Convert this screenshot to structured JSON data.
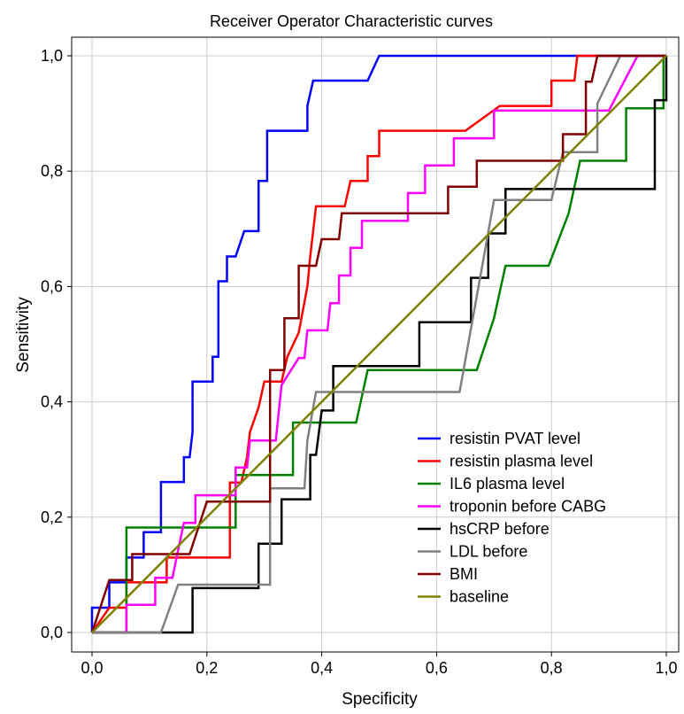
{
  "chart_data": {
    "type": "line",
    "title": "Receiver Operator Characteristic curves",
    "xlabel": "Specificity",
    "ylabel": "Sensitivity",
    "xlim": [
      0,
      1
    ],
    "ylim": [
      0,
      1
    ],
    "xticks": [
      "0,0",
      "0,2",
      "0,4",
      "0,6",
      "0,8",
      "1,0"
    ],
    "yticks": [
      "0,0",
      "0,2",
      "0,4",
      "0,6",
      "0,8",
      "1,0"
    ],
    "grid": true,
    "legend_position": "bottom-right",
    "series": [
      {
        "name": "resistin PVAT level",
        "color": "#0000ff",
        "points": [
          [
            0,
            0
          ],
          [
            0,
            0.043
          ],
          [
            0.03,
            0.043
          ],
          [
            0.03,
            0.087
          ],
          [
            0.06,
            0.087
          ],
          [
            0.06,
            0.13
          ],
          [
            0.09,
            0.13
          ],
          [
            0.09,
            0.174
          ],
          [
            0.11,
            0.174
          ],
          [
            0.12,
            0.174
          ],
          [
            0.12,
            0.261
          ],
          [
            0.16,
            0.261
          ],
          [
            0.16,
            0.304
          ],
          [
            0.17,
            0.304
          ],
          [
            0.175,
            0.348
          ],
          [
            0.175,
            0.435
          ],
          [
            0.21,
            0.435
          ],
          [
            0.21,
            0.478
          ],
          [
            0.22,
            0.478
          ],
          [
            0.22,
            0.609
          ],
          [
            0.235,
            0.609
          ],
          [
            0.235,
            0.652
          ],
          [
            0.25,
            0.652
          ],
          [
            0.265,
            0.696
          ],
          [
            0.29,
            0.696
          ],
          [
            0.29,
            0.783
          ],
          [
            0.305,
            0.783
          ],
          [
            0.305,
            0.87
          ],
          [
            0.375,
            0.87
          ],
          [
            0.375,
            0.913
          ],
          [
            0.385,
            0.957
          ],
          [
            0.48,
            0.957
          ],
          [
            0.5,
            1.0
          ],
          [
            1.0,
            1.0
          ]
        ]
      },
      {
        "name": "resistin plasma level",
        "color": "#ff0000",
        "points": [
          [
            0,
            0
          ],
          [
            0.03,
            0.043
          ],
          [
            0.06,
            0.043
          ],
          [
            0.06,
            0.087
          ],
          [
            0.13,
            0.087
          ],
          [
            0.13,
            0.13
          ],
          [
            0.24,
            0.13
          ],
          [
            0.24,
            0.26
          ],
          [
            0.26,
            0.26
          ],
          [
            0.27,
            0.304
          ],
          [
            0.275,
            0.348
          ],
          [
            0.29,
            0.39
          ],
          [
            0.3,
            0.435
          ],
          [
            0.33,
            0.435
          ],
          [
            0.34,
            0.478
          ],
          [
            0.36,
            0.52
          ],
          [
            0.375,
            0.6
          ],
          [
            0.38,
            0.652
          ],
          [
            0.385,
            0.696
          ],
          [
            0.39,
            0.739
          ],
          [
            0.44,
            0.739
          ],
          [
            0.45,
            0.783
          ],
          [
            0.48,
            0.783
          ],
          [
            0.48,
            0.826
          ],
          [
            0.5,
            0.826
          ],
          [
            0.5,
            0.87
          ],
          [
            0.65,
            0.87
          ],
          [
            0.71,
            0.913
          ],
          [
            0.8,
            0.913
          ],
          [
            0.8,
            0.957
          ],
          [
            0.84,
            0.957
          ],
          [
            0.845,
            1.0
          ],
          [
            1.0,
            1.0
          ]
        ]
      },
      {
        "name": "IL6 plasma level",
        "color": "#008000",
        "points": [
          [
            0,
            0
          ],
          [
            0.06,
            0
          ],
          [
            0.06,
            0.182
          ],
          [
            0.25,
            0.182
          ],
          [
            0.25,
            0.273
          ],
          [
            0.35,
            0.273
          ],
          [
            0.35,
            0.364
          ],
          [
            0.46,
            0.364
          ],
          [
            0.48,
            0.455
          ],
          [
            0.67,
            0.455
          ],
          [
            0.7,
            0.545
          ],
          [
            0.72,
            0.636
          ],
          [
            0.795,
            0.636
          ],
          [
            0.83,
            0.727
          ],
          [
            0.85,
            0.818
          ],
          [
            0.93,
            0.818
          ],
          [
            0.93,
            0.909
          ],
          [
            0.995,
            0.909
          ],
          [
            0.995,
            1.0
          ],
          [
            1.0,
            1.0
          ]
        ]
      },
      {
        "name": "troponin before CABG",
        "color": "#ff00ff",
        "points": [
          [
            0,
            0
          ],
          [
            0.06,
            0
          ],
          [
            0.06,
            0.048
          ],
          [
            0.11,
            0.048
          ],
          [
            0.11,
            0.095
          ],
          [
            0.14,
            0.095
          ],
          [
            0.15,
            0.143
          ],
          [
            0.16,
            0.19
          ],
          [
            0.18,
            0.19
          ],
          [
            0.18,
            0.238
          ],
          [
            0.25,
            0.238
          ],
          [
            0.25,
            0.286
          ],
          [
            0.27,
            0.286
          ],
          [
            0.275,
            0.333
          ],
          [
            0.32,
            0.333
          ],
          [
            0.325,
            0.381
          ],
          [
            0.33,
            0.429
          ],
          [
            0.36,
            0.476
          ],
          [
            0.37,
            0.476
          ],
          [
            0.375,
            0.524
          ],
          [
            0.41,
            0.524
          ],
          [
            0.415,
            0.571
          ],
          [
            0.43,
            0.571
          ],
          [
            0.43,
            0.619
          ],
          [
            0.45,
            0.619
          ],
          [
            0.45,
            0.667
          ],
          [
            0.47,
            0.667
          ],
          [
            0.47,
            0.714
          ],
          [
            0.55,
            0.714
          ],
          [
            0.55,
            0.762
          ],
          [
            0.58,
            0.762
          ],
          [
            0.58,
            0.81
          ],
          [
            0.63,
            0.81
          ],
          [
            0.63,
            0.857
          ],
          [
            0.68,
            0.857
          ],
          [
            0.7,
            0.857
          ],
          [
            0.7,
            0.905
          ],
          [
            0.9,
            0.905
          ],
          [
            0.95,
            1.0
          ],
          [
            1.0,
            1.0
          ]
        ]
      },
      {
        "name": "hsCRP before",
        "color": "#000000",
        "points": [
          [
            0,
            0
          ],
          [
            0.175,
            0
          ],
          [
            0.175,
            0.077
          ],
          [
            0.29,
            0.077
          ],
          [
            0.29,
            0.154
          ],
          [
            0.33,
            0.154
          ],
          [
            0.33,
            0.231
          ],
          [
            0.38,
            0.231
          ],
          [
            0.38,
            0.308
          ],
          [
            0.39,
            0.308
          ],
          [
            0.4,
            0.385
          ],
          [
            0.42,
            0.385
          ],
          [
            0.42,
            0.462
          ],
          [
            0.57,
            0.462
          ],
          [
            0.57,
            0.538
          ],
          [
            0.66,
            0.538
          ],
          [
            0.66,
            0.615
          ],
          [
            0.69,
            0.615
          ],
          [
            0.69,
            0.692
          ],
          [
            0.72,
            0.692
          ],
          [
            0.72,
            0.769
          ],
          [
            0.98,
            0.769
          ],
          [
            0.98,
            0.923
          ],
          [
            1.0,
            0.923
          ],
          [
            1.0,
            1.0
          ]
        ]
      },
      {
        "name": "LDL before",
        "color": "#808080",
        "points": [
          [
            0,
            0
          ],
          [
            0.12,
            0
          ],
          [
            0.15,
            0.083
          ],
          [
            0.25,
            0.083
          ],
          [
            0.29,
            0.083
          ],
          [
            0.31,
            0.083
          ],
          [
            0.31,
            0.25
          ],
          [
            0.37,
            0.25
          ],
          [
            0.375,
            0.333
          ],
          [
            0.39,
            0.417
          ],
          [
            0.64,
            0.417
          ],
          [
            0.67,
            0.583
          ],
          [
            0.7,
            0.75
          ],
          [
            0.8,
            0.75
          ],
          [
            0.82,
            0.833
          ],
          [
            0.88,
            0.833
          ],
          [
            0.88,
            0.917
          ],
          [
            0.92,
            1.0
          ],
          [
            1.0,
            1.0
          ]
        ]
      },
      {
        "name": "BMI",
        "color": "#800000",
        "points": [
          [
            0,
            0
          ],
          [
            0.015,
            0.045
          ],
          [
            0.03,
            0.091
          ],
          [
            0.07,
            0.091
          ],
          [
            0.07,
            0.136
          ],
          [
            0.11,
            0.136
          ],
          [
            0.17,
            0.136
          ],
          [
            0.2,
            0.227
          ],
          [
            0.31,
            0.227
          ],
          [
            0.31,
            0.455
          ],
          [
            0.335,
            0.455
          ],
          [
            0.335,
            0.545
          ],
          [
            0.36,
            0.545
          ],
          [
            0.36,
            0.636
          ],
          [
            0.39,
            0.636
          ],
          [
            0.4,
            0.682
          ],
          [
            0.43,
            0.682
          ],
          [
            0.435,
            0.727
          ],
          [
            0.62,
            0.727
          ],
          [
            0.62,
            0.773
          ],
          [
            0.67,
            0.773
          ],
          [
            0.67,
            0.818
          ],
          [
            0.82,
            0.818
          ],
          [
            0.82,
            0.864
          ],
          [
            0.86,
            0.864
          ],
          [
            0.86,
            0.955
          ],
          [
            0.87,
            0.955
          ],
          [
            0.88,
            1.0
          ],
          [
            1.0,
            1.0
          ]
        ]
      },
      {
        "name": "baseline",
        "color": "#808000",
        "points": [
          [
            0,
            0
          ],
          [
            1,
            1
          ]
        ]
      }
    ]
  }
}
